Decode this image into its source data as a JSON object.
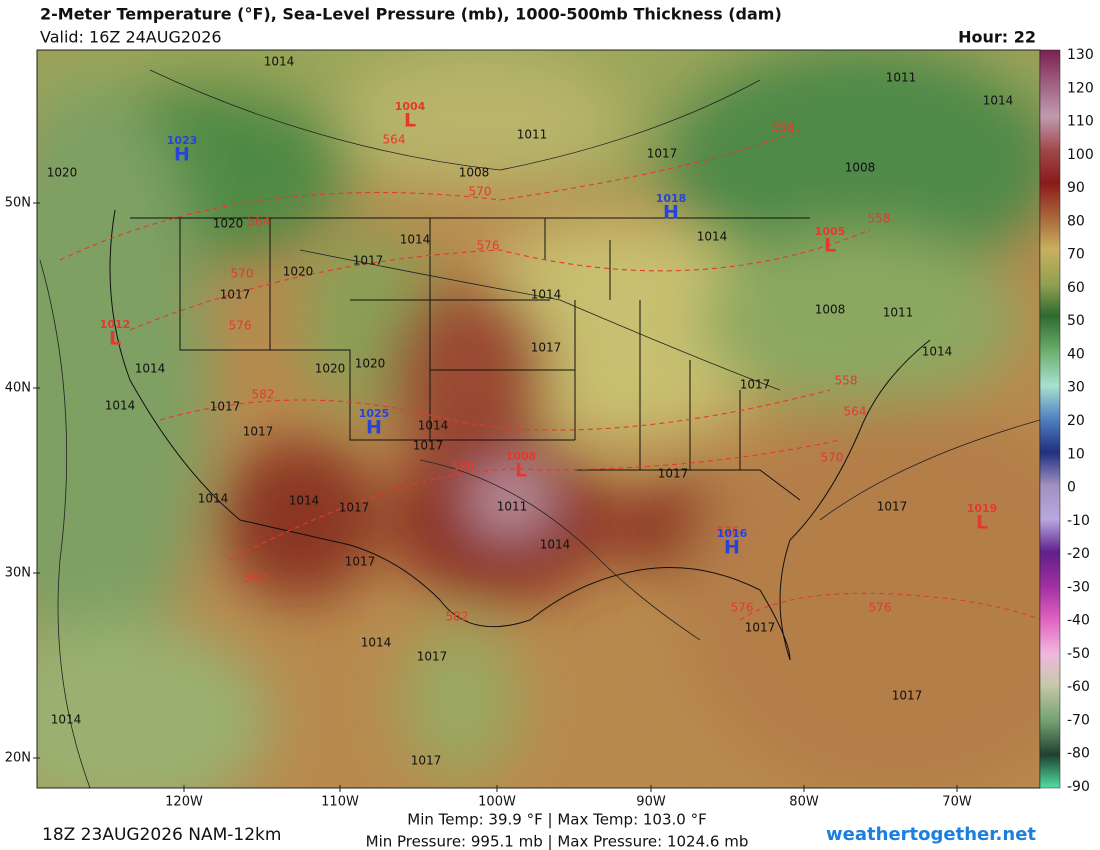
{
  "header": {
    "title": "2-Meter Temperature (°F), Sea-Level Pressure (mb), 1000-500mb Thickness (dam)",
    "valid": "Valid: 16Z 24AUG2026",
    "hour": "Hour: 22"
  },
  "map": {
    "lat_labels": [
      "50N",
      "40N",
      "30N",
      "20N"
    ],
    "lon_labels": [
      "120W",
      "110W",
      "100W",
      "90W",
      "80W",
      "70W"
    ],
    "centers": [
      {
        "type": "H",
        "value": "1023"
      },
      {
        "type": "L",
        "value": "1004"
      },
      {
        "type": "H",
        "value": "1018"
      },
      {
        "type": "L",
        "value": "1005"
      },
      {
        "type": "L",
        "value": "1012"
      },
      {
        "type": "H",
        "value": "1025"
      },
      {
        "type": "L",
        "value": "1008"
      },
      {
        "type": "H",
        "value": "1016"
      },
      {
        "type": "L",
        "value": "1019"
      }
    ],
    "isobar_labels": [
      "1014",
      "1011",
      "1014",
      "1011",
      "1017",
      "1008",
      "1008",
      "1020",
      "1020",
      "1014",
      "1014",
      "1017",
      "1020",
      "1017",
      "1014",
      "1008",
      "1011",
      "1017",
      "1014",
      "1014",
      "1020",
      "1020",
      "1017",
      "1014",
      "1017",
      "1017",
      "1014",
      "1017",
      "1017",
      "1014",
      "1014",
      "1017",
      "1011",
      "1017",
      "1014",
      "1017",
      "1014",
      "1017",
      "1017",
      "1017",
      "1014",
      "1017"
    ],
    "thickness_labels": [
      "564",
      "570",
      "558",
      "564",
      "576",
      "558",
      "570",
      "576",
      "582",
      "558",
      "564",
      "570",
      "588",
      "576",
      "582",
      "582",
      "576",
      "576"
    ]
  },
  "colorbar": {
    "ticks": [
      130,
      120,
      110,
      100,
      90,
      80,
      70,
      60,
      50,
      40,
      30,
      20,
      10,
      0,
      -10,
      -20,
      -30,
      -40,
      -50,
      -60,
      -70,
      -80,
      -90
    ]
  },
  "footer": {
    "run": "18Z 23AUG2026 NAM-12km",
    "temps": "Min Temp:  39.9 °F | Max Temp: 103.0 °F",
    "pressure": "Min Pressure: 995.1 mb | Max Pressure: 1024.6 mb",
    "site": "weathertogether.net"
  }
}
